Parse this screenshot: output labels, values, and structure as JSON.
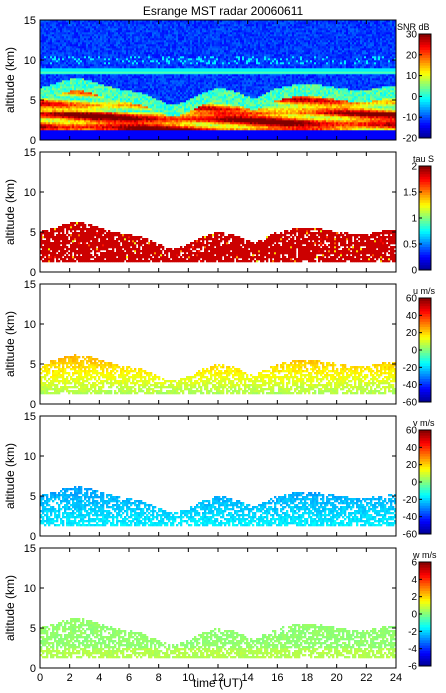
{
  "title": "Esrange MST radar 20060611",
  "xlabel": "time (UT)",
  "colors": {
    "jet": [
      "#00008f",
      "#0000ff",
      "#0080ff",
      "#00ffff",
      "#80ff80",
      "#ffff00",
      "#ff8000",
      "#ff0000",
      "#800000"
    ],
    "background": "#ffffff",
    "axes": "#000000"
  },
  "chart_data": [
    {
      "type": "heatmap",
      "name": "snr",
      "ylabel": "altitude (km)",
      "colorbar_label": "SNR dB",
      "x_range": [
        0,
        24
      ],
      "y_range": [
        0,
        15
      ],
      "x_ticks": [
        0,
        2,
        4,
        6,
        8,
        10,
        12,
        14,
        16,
        18,
        20,
        22,
        24
      ],
      "y_ticks": [
        0,
        5,
        10,
        15
      ],
      "cbar_range": [
        -20,
        30
      ],
      "cbar_ticks": [
        30,
        20,
        10,
        0,
        -10,
        -20
      ],
      "show_x_tick_labels": false
    },
    {
      "type": "heatmap",
      "name": "tau",
      "ylabel": "altitude (km)",
      "colorbar_label": "tau S",
      "x_range": [
        0,
        24
      ],
      "y_range": [
        0,
        15
      ],
      "x_ticks": [
        0,
        2,
        4,
        6,
        8,
        10,
        12,
        14,
        16,
        18,
        20,
        22,
        24
      ],
      "y_ticks": [
        0,
        5,
        10,
        15
      ],
      "cbar_range": [
        0,
        2
      ],
      "cbar_ticks": [
        2,
        1.5,
        1,
        0.5,
        0
      ],
      "show_x_tick_labels": false
    },
    {
      "type": "heatmap",
      "name": "u",
      "ylabel": "altitude (km)",
      "colorbar_label": "u m/s",
      "x_range": [
        0,
        24
      ],
      "y_range": [
        0,
        15
      ],
      "x_ticks": [
        0,
        2,
        4,
        6,
        8,
        10,
        12,
        14,
        16,
        18,
        20,
        22,
        24
      ],
      "y_ticks": [
        0,
        5,
        10,
        15
      ],
      "cbar_range": [
        -60,
        60
      ],
      "cbar_ticks": [
        60,
        40,
        20,
        0,
        -20,
        -40,
        -60
      ],
      "show_x_tick_labels": false
    },
    {
      "type": "heatmap",
      "name": "v",
      "ylabel": "altitude (km)",
      "colorbar_label": "v m/s",
      "x_range": [
        0,
        24
      ],
      "y_range": [
        0,
        15
      ],
      "x_ticks": [
        0,
        2,
        4,
        6,
        8,
        10,
        12,
        14,
        16,
        18,
        20,
        22,
        24
      ],
      "y_ticks": [
        0,
        5,
        10,
        15
      ],
      "cbar_range": [
        -60,
        60
      ],
      "cbar_ticks": [
        60,
        40,
        20,
        0,
        -20,
        -40,
        -60
      ],
      "show_x_tick_labels": false
    },
    {
      "type": "heatmap",
      "name": "w",
      "ylabel": "altitude (km)",
      "colorbar_label": "w m/s",
      "x_range": [
        0,
        24
      ],
      "y_range": [
        0,
        15
      ],
      "x_ticks": [
        0,
        2,
        4,
        6,
        8,
        10,
        12,
        14,
        16,
        18,
        20,
        22,
        24
      ],
      "y_ticks": [
        0,
        5,
        10,
        15
      ],
      "cbar_range": [
        -6,
        6
      ],
      "cbar_ticks": [
        6,
        4,
        2,
        0,
        -2,
        -4,
        -6
      ],
      "show_x_tick_labels": true
    }
  ]
}
